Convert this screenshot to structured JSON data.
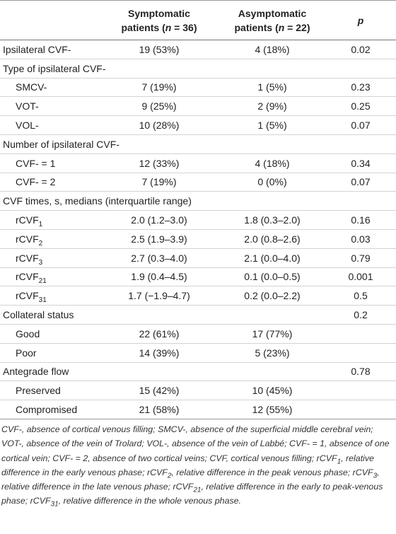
{
  "table": {
    "header": [
      [],
      [
        [
          "Symptomatic"
        ],
        [
          "patients (",
          {
            "i": "n"
          },
          " = 36)"
        ]
      ],
      [
        [
          "Asymptomatic"
        ],
        [
          "patients (",
          {
            "i": "n"
          },
          " = 22)"
        ]
      ],
      [
        [
          {
            "i": "p"
          }
        ]
      ]
    ],
    "rows": [
      {
        "label": [
          "Ipsilateral CVF-"
        ],
        "cells": [
          "19 (53%)",
          "4 (18%)",
          "0.02"
        ]
      },
      {
        "label": [
          "Type of ipsilateral CVF-"
        ],
        "cells": [
          null,
          null,
          null
        ]
      },
      {
        "label": [
          "SMCV-"
        ],
        "indent": true,
        "cells": [
          "7 (19%)",
          "1 (5%)",
          "0.23"
        ]
      },
      {
        "label": [
          "VOT-"
        ],
        "indent": true,
        "cells": [
          "9 (25%)",
          "2 (9%)",
          "0.25"
        ]
      },
      {
        "label": [
          "VOL-"
        ],
        "indent": true,
        "cells": [
          "10 (28%)",
          "1 (5%)",
          "0.07"
        ]
      },
      {
        "label": [
          "Number of ipsilateral CVF-"
        ],
        "cells": [
          null,
          null,
          null
        ]
      },
      {
        "label": [
          "CVF- = 1"
        ],
        "indent": true,
        "cells": [
          "12 (33%)",
          "4 (18%)",
          "0.34"
        ]
      },
      {
        "label": [
          "CVF- = 2"
        ],
        "indent": true,
        "cells": [
          "7 (19%)",
          "0 (0%)",
          "0.07"
        ]
      },
      {
        "label": [
          "CVF times, s, medians (interquartile range)"
        ],
        "cells": [
          null,
          null,
          null
        ]
      },
      {
        "label": [
          "rCVF",
          {
            "sub": "1"
          }
        ],
        "indent": true,
        "cells": [
          "2.0 (1.2–3.0)",
          "1.8 (0.3–2.0)",
          "0.16"
        ]
      },
      {
        "label": [
          "rCVF",
          {
            "sub": "2"
          }
        ],
        "indent": true,
        "cells": [
          "2.5 (1.9–3.9)",
          "2.0 (0.8–2.6)",
          "0.03"
        ]
      },
      {
        "label": [
          "rCVF",
          {
            "sub": "3"
          }
        ],
        "indent": true,
        "cells": [
          "2.7 (0.3–4.0)",
          "2.1 (0.0–4.0)",
          "0.79"
        ]
      },
      {
        "label": [
          "rCVF",
          {
            "sub": "21"
          }
        ],
        "indent": true,
        "cells": [
          "1.9 (0.4–4.5)",
          "0.1 (0.0–0.5)",
          "0.001"
        ]
      },
      {
        "label": [
          "rCVF",
          {
            "sub": "31"
          }
        ],
        "indent": true,
        "cells": [
          "1.7 (−1.9–4.7)",
          "0.2 (0.0–2.2)",
          "0.5"
        ]
      },
      {
        "label": [
          "Collateral status"
        ],
        "cells": [
          null,
          null,
          "0.2"
        ]
      },
      {
        "label": [
          "Good"
        ],
        "indent": true,
        "cells": [
          "22 (61%)",
          "17 (77%)",
          null
        ]
      },
      {
        "label": [
          "Poor"
        ],
        "indent": true,
        "cells": [
          "14 (39%)",
          "5 (23%)",
          null
        ]
      },
      {
        "label": [
          "Antegrade flow"
        ],
        "cells": [
          null,
          null,
          "0.78"
        ]
      },
      {
        "label": [
          "Preserved"
        ],
        "indent": true,
        "cells": [
          "15 (42%)",
          "10 (45%)",
          null
        ]
      },
      {
        "label": [
          "Compromised"
        ],
        "indent": true,
        "cells": [
          "21 (58%)",
          "12 (55%)",
          null
        ]
      }
    ]
  },
  "footnote": [
    "CVF-, absence of cortical venous filling; SMCV-, absence of the superficial middle cerebral vein; VOT-, absence of the vein of Trolard; VOL-, absence of the vein of Labbé; CVF- = 1, absence of one cortical vein; CVF- = 2, absence of two cortical veins; CVF, cortical venous filling; rCVF",
    {
      "sub": "1"
    },
    ", relative difference in the early venous phase; rCVF",
    {
      "sub": "2"
    },
    ", relative difference in the peak venous phase; rCVF",
    {
      "sub": "3"
    },
    ", relative difference in the late venous phase; rCVF",
    {
      "sub": "21"
    },
    ", relative difference in the early to peak-venous phase; rCVF",
    {
      "sub": "31"
    },
    ", relative difference in the whole venous phase."
  ]
}
